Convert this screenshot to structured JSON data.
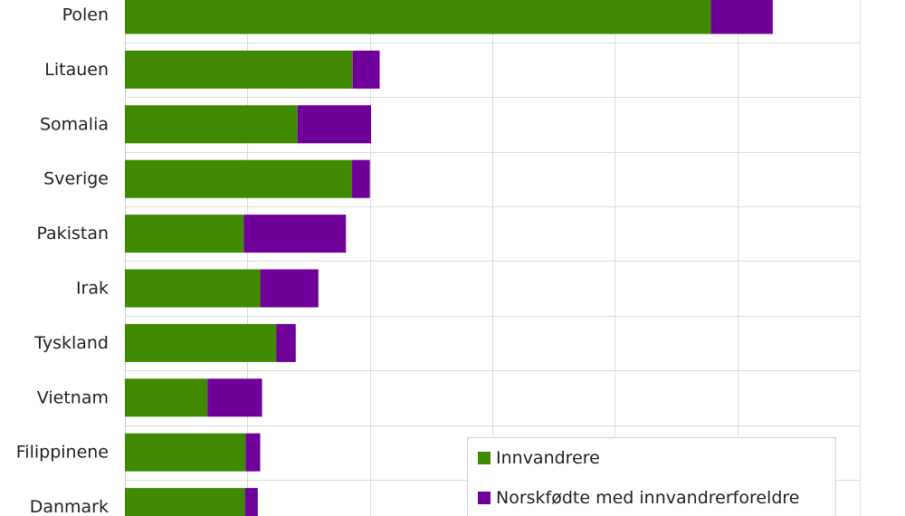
{
  "chart_data": {
    "type": "bar",
    "orientation": "horizontal",
    "stacked": true,
    "categories": [
      "Polen",
      "Litauen",
      "Somalia",
      "Sverige",
      "Pakistan",
      "Irak",
      "Tyskland",
      "Vietnam",
      "Filippinene",
      "Danmark"
    ],
    "series": [
      {
        "name": "Innvandrere",
        "color": "#3f8a00",
        "values": [
          95700,
          37200,
          28200,
          37100,
          19400,
          22100,
          24700,
          13500,
          19700,
          19600
        ]
      },
      {
        "name": "Norskfødte med innvandrerforeldre",
        "color": "#70009a",
        "values": [
          10100,
          4400,
          12000,
          2900,
          16700,
          9500,
          3200,
          8900,
          2400,
          2100
        ]
      }
    ],
    "xlim": [
      0,
      120000
    ],
    "grid": true,
    "legend_position": "bottom-right"
  }
}
